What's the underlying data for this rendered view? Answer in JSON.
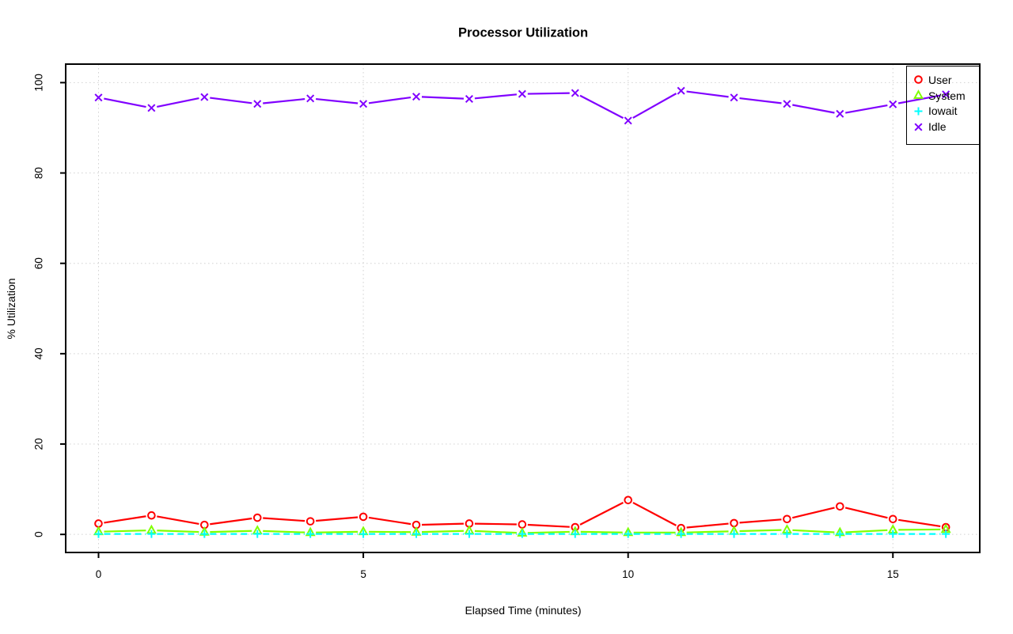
{
  "chart_data": {
    "type": "line",
    "title": "Processor Utilization",
    "xlabel": "Elapsed Time (minutes)",
    "ylabel": "% Utilization",
    "x": [
      0,
      1,
      2,
      3,
      4,
      5,
      6,
      7,
      8,
      9,
      10,
      11,
      12,
      13,
      14,
      15,
      16
    ],
    "x_ticks": [
      0,
      5,
      10,
      15
    ],
    "y_ticks": [
      0,
      20,
      40,
      60,
      80,
      100
    ],
    "xlim": [
      -0.62,
      16.64
    ],
    "ylim": [
      -4,
      104.1
    ],
    "grid": true,
    "grid_style": "dotted",
    "grid_color": "#d4d4d4",
    "axis_color": "#000000",
    "legend_position": "top-right",
    "series": [
      {
        "name": "User",
        "color": "#ff0000",
        "marker": "circle",
        "line": "solid",
        "values": [
          2.4,
          4.2,
          2.1,
          3.7,
          2.9,
          3.9,
          2.1,
          2.4,
          2.2,
          1.6,
          7.6,
          1.4,
          2.5,
          3.4,
          6.2,
          3.4,
          1.6
        ]
      },
      {
        "name": "System",
        "color": "#80ff00",
        "marker": "triangle",
        "line": "solid",
        "values": [
          0.6,
          0.9,
          0.5,
          0.8,
          0.4,
          0.6,
          0.5,
          0.8,
          0.3,
          0.6,
          0.4,
          0.4,
          0.7,
          1.0,
          0.4,
          1.0,
          1.1
        ]
      },
      {
        "name": "Iowait",
        "color": "#00ffff",
        "marker": "plus",
        "line": "dashed",
        "values": [
          0.1,
          0.1,
          0.1,
          0.1,
          0.1,
          0.1,
          0.1,
          0.1,
          0.1,
          0.1,
          0.1,
          0.1,
          0.1,
          0.1,
          0.1,
          0.1,
          0.1
        ]
      },
      {
        "name": "Idle",
        "color": "#8000ff",
        "marker": "x",
        "line": "solid",
        "values": [
          96.7,
          94.4,
          96.8,
          95.3,
          96.5,
          95.3,
          96.9,
          96.4,
          97.5,
          97.7,
          91.6,
          98.2,
          96.7,
          95.3,
          93.1,
          95.2,
          97.4
        ]
      }
    ]
  }
}
